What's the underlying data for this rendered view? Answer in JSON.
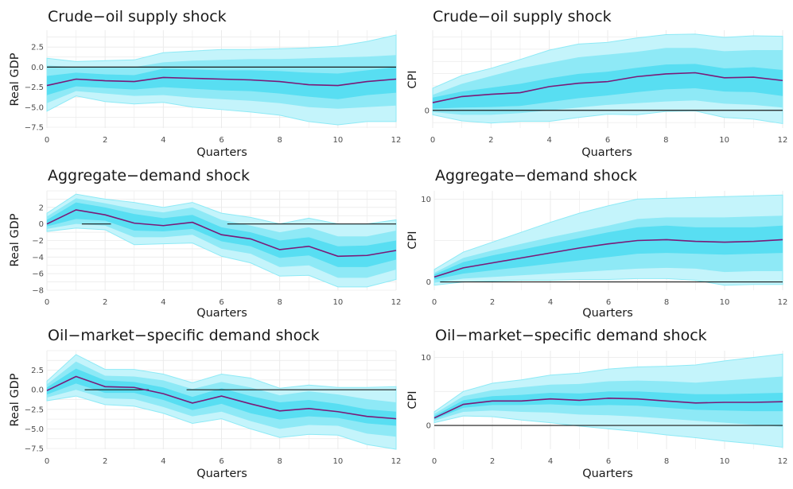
{
  "colors": {
    "band_outer": "#c4f4fb",
    "band_mid": "#8ee9f6",
    "band_inner": "#58def2",
    "band_edge": "#8eeaf6",
    "median_line": "#7a1a78",
    "zero_line": "#1a1a1a",
    "grid": "#ebebeb",
    "text": "#1a1a1a",
    "tick_text": "#4d4d4d"
  },
  "chart_data": [
    {
      "type": "line",
      "title": "Crude−oil supply shock",
      "xlabel": "Quarters",
      "ylabel": "Real GDP",
      "x": [
        0,
        1,
        2,
        3,
        4,
        5,
        6,
        7,
        8,
        9,
        10,
        11,
        12
      ],
      "xlim": [
        0,
        12
      ],
      "ylim": [
        -7.6,
        4.6
      ],
      "xticks": [
        0,
        2,
        4,
        6,
        8,
        10,
        12
      ],
      "xtick_labels": [
        "0",
        "2",
        "4",
        "6",
        "8",
        "10",
        "12"
      ],
      "yticks": [
        -7.5,
        -5,
        -2.5,
        0,
        2.5
      ],
      "ytick_labels": [
        "−7.5",
        "−5.0",
        "−2.5",
        "0.0",
        "2.5"
      ],
      "grid": true,
      "zero_line": {
        "y": 0,
        "segments": [
          [
            0,
            12
          ]
        ]
      },
      "series": [
        {
          "role": "band_outer",
          "lower": [
            -5.5,
            -3.6,
            -4.3,
            -4.6,
            -4.4,
            -5.0,
            -5.3,
            -5.6,
            -6.0,
            -6.8,
            -7.2,
            -6.8,
            -6.8
          ],
          "upper": [
            1.1,
            0.7,
            0.8,
            0.9,
            1.8,
            2.0,
            2.2,
            2.2,
            2.3,
            2.4,
            2.6,
            3.2,
            4.0
          ]
        },
        {
          "role": "band_mid",
          "lower": [
            -4.5,
            -3.0,
            -3.3,
            -3.6,
            -3.5,
            -3.8,
            -4.0,
            -4.2,
            -4.5,
            -5.0,
            -5.2,
            -5.0,
            -4.8
          ],
          "upper": [
            0.2,
            0.0,
            0.0,
            0.0,
            0.6,
            0.8,
            0.9,
            1.0,
            1.0,
            1.1,
            1.2,
            1.3,
            1.5
          ]
        },
        {
          "role": "band_inner",
          "lower": [
            -3.5,
            -2.4,
            -2.6,
            -2.8,
            -2.5,
            -2.7,
            -2.9,
            -3.0,
            -3.3,
            -3.7,
            -4.0,
            -3.5,
            -3.2
          ],
          "upper": [
            -1.1,
            -0.7,
            -0.9,
            -1.0,
            -0.2,
            -0.3,
            -0.4,
            -0.4,
            -0.5,
            -0.7,
            -0.8,
            -0.4,
            0.0
          ]
        },
        {
          "role": "median",
          "values": [
            -2.3,
            -1.5,
            -1.7,
            -1.8,
            -1.3,
            -1.4,
            -1.5,
            -1.6,
            -1.8,
            -2.2,
            -2.3,
            -1.8,
            -1.5
          ]
        }
      ]
    },
    {
      "type": "line",
      "title": "Crude−oil supply shock",
      "xlabel": "Quarters",
      "ylabel": "CPI",
      "x": [
        0,
        1,
        2,
        3,
        4,
        5,
        6,
        7,
        8,
        9,
        10,
        11,
        12
      ],
      "xlim": [
        0,
        12
      ],
      "ylim": [
        -3.2,
        14.5
      ],
      "xticks": [
        0,
        2,
        4,
        6,
        8,
        10,
        12
      ],
      "xtick_labels": [
        "0",
        "2",
        "4",
        "6",
        "8",
        "10",
        "12"
      ],
      "yticks": [
        0
      ],
      "ytick_labels": [
        "0"
      ],
      "grid": true,
      "zero_line": {
        "y": 0,
        "segments": [
          [
            0,
            12
          ]
        ]
      },
      "series": [
        {
          "role": "band_outer",
          "lower": [
            -0.8,
            -1.9,
            -2.3,
            -2.0,
            -2.0,
            -1.3,
            -0.7,
            -0.8,
            -0.2,
            -0.1,
            -1.3,
            -1.6,
            -2.4
          ],
          "upper": [
            4.0,
            6.3,
            7.6,
            9.2,
            10.9,
            12.0,
            12.3,
            13.1,
            13.7,
            13.8,
            13.2,
            13.5,
            13.4
          ]
        },
        {
          "role": "band_mid",
          "lower": [
            -0.3,
            -0.8,
            -0.8,
            -0.5,
            0.0,
            0.5,
            1.0,
            1.3,
            1.6,
            1.8,
            1.2,
            1.0,
            0.5
          ],
          "upper": [
            2.8,
            4.8,
            6.2,
            7.6,
            8.6,
            9.6,
            10.1,
            10.6,
            11.3,
            11.3,
            10.7,
            10.9,
            10.9
          ]
        },
        {
          "role": "band_inner",
          "lower": [
            0.3,
            0.5,
            0.6,
            0.8,
            1.5,
            2.2,
            2.7,
            3.3,
            3.8,
            4.0,
            3.4,
            3.3,
            2.6
          ],
          "upper": [
            2.3,
            3.4,
            4.1,
            4.8,
            5.8,
            6.6,
            7.0,
            7.7,
            8.3,
            8.4,
            7.6,
            7.8,
            7.3
          ]
        },
        {
          "role": "median",
          "values": [
            1.4,
            2.5,
            2.9,
            3.2,
            4.3,
            4.9,
            5.2,
            6.1,
            6.6,
            6.8,
            5.9,
            6.0,
            5.4
          ]
        }
      ]
    },
    {
      "type": "line",
      "title": "Aggregate−demand shock",
      "xlabel": "Quarters",
      "ylabel": "Real GDP",
      "x": [
        0,
        1,
        2,
        3,
        4,
        5,
        6,
        7,
        8,
        9,
        10,
        11,
        12
      ],
      "xlim": [
        0,
        12
      ],
      "ylim": [
        -8,
        4
      ],
      "xticks": [
        0,
        2,
        4,
        6,
        8,
        10,
        12
      ],
      "xtick_labels": [
        "0",
        "2",
        "4",
        "6",
        "8",
        "10",
        "12"
      ],
      "yticks": [
        -8,
        -6,
        -4,
        -2,
        0,
        2
      ],
      "ytick_labels": [
        "−8",
        "−6",
        "−4",
        "−2",
        "0",
        "2"
      ],
      "grid": true,
      "zero_line": {
        "y": 0,
        "segments": [
          [
            1.2,
            2.2
          ],
          [
            6.2,
            12
          ]
        ]
      },
      "series": [
        {
          "role": "band_outer",
          "lower": [
            -0.9,
            -0.5,
            -0.7,
            -2.5,
            -2.4,
            -2.3,
            -3.9,
            -4.7,
            -6.3,
            -6.2,
            -7.6,
            -7.6,
            -6.7
          ],
          "upper": [
            1.3,
            3.6,
            3.0,
            2.6,
            2.0,
            2.6,
            1.3,
            0.8,
            0.0,
            0.7,
            0.0,
            0.0,
            0.5
          ]
        },
        {
          "role": "band_mid",
          "lower": [
            -0.6,
            0.0,
            -0.2,
            -1.6,
            -1.6,
            -1.3,
            -3.0,
            -3.6,
            -5.2,
            -5.0,
            -6.5,
            -6.5,
            -5.5
          ],
          "upper": [
            0.9,
            3.1,
            2.5,
            1.8,
            1.4,
            2.0,
            0.5,
            -0.2,
            -1.0,
            -0.4,
            -1.5,
            -1.5,
            -0.8
          ]
        },
        {
          "role": "band_inner",
          "lower": [
            -0.3,
            0.6,
            0.4,
            -0.8,
            -0.9,
            -0.6,
            -2.1,
            -2.7,
            -4.1,
            -3.8,
            -5.2,
            -5.2,
            -4.3
          ],
          "upper": [
            0.5,
            2.6,
            2.0,
            1.2,
            0.7,
            1.1,
            -0.4,
            -1.0,
            -2.0,
            -1.6,
            -2.7,
            -2.6,
            -2.0
          ]
        },
        {
          "role": "median",
          "values": [
            0.0,
            1.7,
            1.1,
            0.1,
            -0.2,
            0.2,
            -1.3,
            -1.8,
            -3.1,
            -2.7,
            -3.9,
            -3.8,
            -3.2
          ]
        }
      ]
    },
    {
      "type": "line",
      "title": "Aggregate−demand shock",
      "xlabel": "Quarters",
      "ylabel": "CPI",
      "x": [
        0,
        1,
        2,
        3,
        4,
        5,
        6,
        7,
        8,
        9,
        10,
        11,
        12
      ],
      "xlim": [
        0,
        12
      ],
      "ylim": [
        -1.0,
        11.0
      ],
      "xticks": [
        0,
        2,
        4,
        6,
        8,
        10,
        12
      ],
      "xtick_labels": [
        "0",
        "2",
        "4",
        "6",
        "8",
        "10",
        "12"
      ],
      "yticks": [
        0,
        10
      ],
      "ytick_labels": [
        "0",
        "10"
      ],
      "grid": true,
      "zero_line": {
        "y": 0,
        "segments": [
          [
            0.2,
            12
          ]
        ]
      },
      "series": [
        {
          "role": "band_outer",
          "lower": [
            -0.4,
            0.0,
            0.1,
            0.2,
            0.2,
            0.3,
            0.3,
            0.4,
            0.4,
            0.2,
            -0.4,
            -0.3,
            -0.3
          ],
          "upper": [
            1.5,
            3.6,
            4.8,
            6.0,
            7.2,
            8.3,
            9.2,
            10.0,
            10.1,
            10.2,
            10.3,
            10.4,
            10.5
          ]
        },
        {
          "role": "band_mid",
          "lower": [
            -0.1,
            0.4,
            0.6,
            0.8,
            1.0,
            1.2,
            1.4,
            1.6,
            1.7,
            1.6,
            1.2,
            1.3,
            1.3
          ],
          "upper": [
            1.1,
            2.9,
            3.8,
            4.6,
            5.4,
            6.1,
            6.8,
            7.6,
            7.8,
            7.8,
            7.8,
            7.9,
            8.0
          ]
        },
        {
          "role": "band_inner",
          "lower": [
            0.3,
            1.0,
            1.4,
            1.8,
            2.2,
            2.6,
            3.0,
            3.4,
            3.5,
            3.4,
            3.3,
            3.4,
            3.5
          ],
          "upper": [
            0.9,
            2.4,
            3.2,
            3.9,
            4.6,
            5.3,
            6.0,
            6.6,
            6.8,
            6.6,
            6.6,
            6.6,
            6.8
          ]
        },
        {
          "role": "median",
          "values": [
            0.6,
            1.7,
            2.3,
            2.9,
            3.5,
            4.1,
            4.6,
            5.0,
            5.1,
            4.9,
            4.8,
            4.9,
            5.1
          ]
        }
      ]
    },
    {
      "type": "line",
      "title": "Oil−market−specific demand shock",
      "xlabel": "Quarters",
      "ylabel": "Real GDP",
      "x": [
        0,
        1,
        2,
        3,
        4,
        5,
        6,
        7,
        8,
        9,
        10,
        11,
        12
      ],
      "xlim": [
        0,
        12
      ],
      "ylim": [
        -7.6,
        5.0
      ],
      "xticks": [
        0,
        2,
        4,
        6,
        8,
        10,
        12
      ],
      "xtick_labels": [
        "0",
        "2",
        "4",
        "6",
        "8",
        "10",
        "12"
      ],
      "yticks": [
        -7.5,
        -5,
        -2.5,
        0,
        2.5
      ],
      "ytick_labels": [
        "−7.5",
        "−5.0",
        "−2.5",
        "0.0",
        "2.5"
      ],
      "grid": true,
      "zero_line": {
        "y": 0,
        "segments": [
          [
            1.3,
            3.5
          ],
          [
            4.8,
            12
          ]
        ]
      },
      "series": [
        {
          "role": "band_outer",
          "lower": [
            -1.4,
            -0.8,
            -1.9,
            -2.1,
            -3.0,
            -4.3,
            -3.7,
            -5.0,
            -6.1,
            -5.7,
            -5.8,
            -7.0,
            -7.6
          ],
          "upper": [
            1.1,
            4.5,
            2.6,
            2.6,
            2.0,
            0.9,
            2.0,
            1.5,
            0.2,
            0.6,
            0.3,
            0.3,
            0.4
          ]
        },
        {
          "role": "band_mid",
          "lower": [
            -1.0,
            0.0,
            -1.1,
            -1.2,
            -2.2,
            -3.4,
            -2.8,
            -4.0,
            -5.0,
            -4.5,
            -4.6,
            -5.6,
            -6.0
          ],
          "upper": [
            0.7,
            3.6,
            1.8,
            1.7,
            1.2,
            0.1,
            1.0,
            0.3,
            -0.7,
            -0.2,
            -0.6,
            -1.2,
            -1.6
          ]
        },
        {
          "role": "band_inner",
          "lower": [
            -0.6,
            0.8,
            -0.4,
            -0.4,
            -1.3,
            -2.6,
            -1.8,
            -3.0,
            -3.8,
            -3.4,
            -3.6,
            -4.3,
            -4.6
          ],
          "upper": [
            0.3,
            2.7,
            1.2,
            1.0,
            0.3,
            -0.9,
            0.2,
            -0.8,
            -1.6,
            -1.3,
            -1.8,
            -2.5,
            -2.8
          ]
        },
        {
          "role": "median",
          "values": [
            -0.1,
            1.7,
            0.4,
            0.3,
            -0.5,
            -1.7,
            -0.8,
            -1.8,
            -2.7,
            -2.4,
            -2.8,
            -3.4,
            -3.7
          ]
        }
      ]
    },
    {
      "type": "line",
      "title": "Oil−market−specific demand shock",
      "xlabel": "Quarters",
      "ylabel": "CPI",
      "x": [
        0,
        1,
        2,
        3,
        4,
        5,
        6,
        7,
        8,
        9,
        10,
        11,
        12
      ],
      "xlim": [
        0,
        12
      ],
      "ylim": [
        -3.5,
        11.0
      ],
      "xticks": [
        0,
        2,
        4,
        6,
        8,
        10,
        12
      ],
      "xtick_labels": [
        "0",
        "2",
        "4",
        "6",
        "8",
        "10",
        "12"
      ],
      "yticks": [
        0,
        10
      ],
      "ytick_labels": [
        "0",
        "10"
      ],
      "grid": true,
      "zero_line": {
        "y": 0,
        "segments": [
          [
            0,
            12
          ]
        ]
      },
      "series": [
        {
          "role": "band_outer",
          "lower": [
            0.4,
            1.4,
            1.3,
            0.8,
            0.4,
            -0.1,
            -0.5,
            -0.9,
            -1.4,
            -1.8,
            -2.3,
            -2.7,
            -3.2
          ],
          "upper": [
            2.0,
            5.0,
            6.2,
            6.7,
            7.4,
            7.7,
            8.3,
            8.6,
            8.7,
            8.9,
            9.5,
            10.0,
            10.5
          ]
        },
        {
          "role": "band_mid",
          "lower": [
            0.7,
            2.0,
            2.2,
            2.0,
            1.9,
            1.6,
            1.5,
            1.3,
            1.0,
            0.7,
            0.4,
            0.1,
            -0.2
          ],
          "upper": [
            1.7,
            4.3,
            5.2,
            5.6,
            6.0,
            6.1,
            6.5,
            6.6,
            6.5,
            6.3,
            6.6,
            6.9,
            7.2
          ]
        },
        {
          "role": "band_inner",
          "lower": [
            0.9,
            2.6,
            3.0,
            3.0,
            3.1,
            2.9,
            3.0,
            2.9,
            2.6,
            2.3,
            2.2,
            2.1,
            2.1
          ],
          "upper": [
            1.4,
            3.7,
            4.3,
            4.5,
            4.8,
            4.7,
            5.0,
            5.0,
            4.8,
            4.6,
            4.6,
            4.7,
            4.8
          ]
        },
        {
          "role": "median",
          "values": [
            1.1,
            3.1,
            3.6,
            3.6,
            3.9,
            3.7,
            4.0,
            3.9,
            3.6,
            3.3,
            3.4,
            3.4,
            3.5
          ]
        }
      ]
    }
  ]
}
